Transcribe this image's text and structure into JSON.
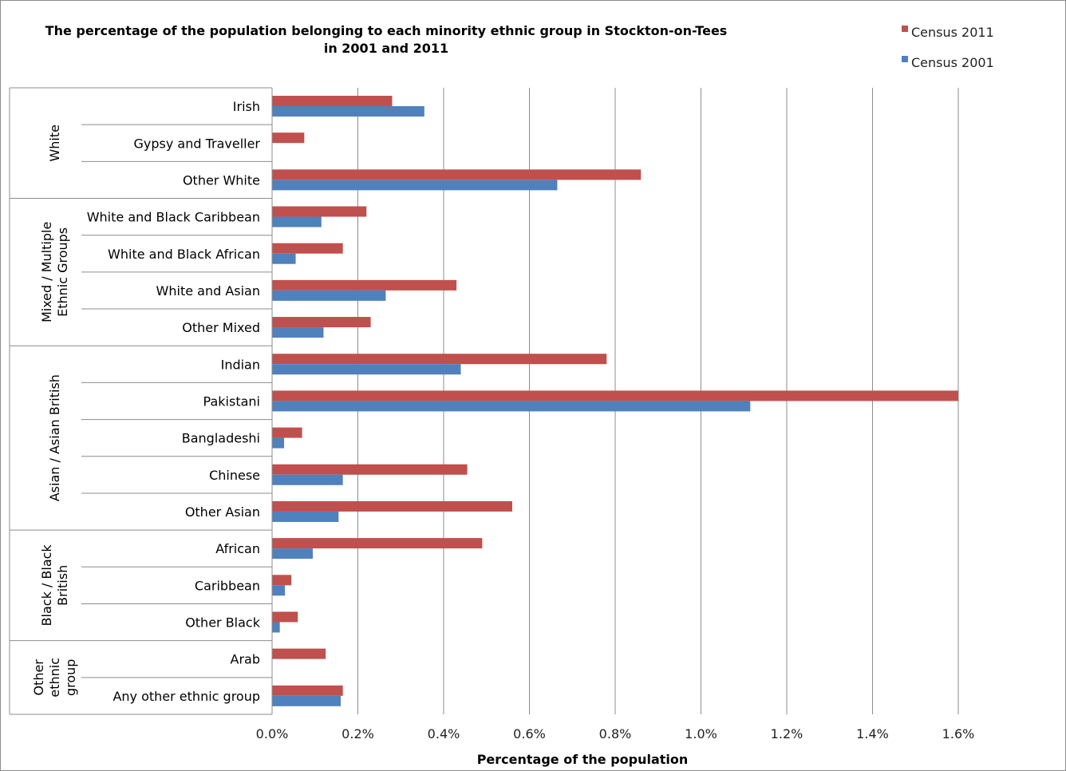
{
  "chart_data": {
    "type": "bar",
    "orientation": "horizontal",
    "title": "The percentage of the population belonging to each minority ethnic group in Stockton-on-Tees in 2001 and 2011",
    "title_lines": [
      "The percentage of the population belonging to each minority ethnic group in Stockton-on-Tees",
      "in 2001 and 2011"
    ],
    "xlabel": "Percentage of the population",
    "xlim": [
      0,
      1.6
    ],
    "x_unit": "%",
    "x_ticks": [
      "0.0%",
      "0.2%",
      "0.4%",
      "0.6%",
      "0.8%",
      "1.0%",
      "1.2%",
      "1.4%",
      "1.6%"
    ],
    "grid": "vertical",
    "legend_position": "top-right",
    "groups": [
      {
        "name": "White",
        "name_lines": [
          "White"
        ],
        "categories": [
          "Irish",
          "Gypsy and Traveller",
          "Other White"
        ]
      },
      {
        "name": "Mixed / Multiple Ethnic Groups",
        "name_lines": [
          "Mixed / Multiple",
          "Ethnic Groups"
        ],
        "categories": [
          "White and Black Caribbean",
          "White and Black African",
          "White and Asian",
          "Other Mixed"
        ]
      },
      {
        "name": "Asian / Asian British",
        "name_lines": [
          "Asian / Asian British"
        ],
        "categories": [
          "Indian",
          "Pakistani",
          "Bangladeshi",
          "Chinese",
          "Other Asian"
        ]
      },
      {
        "name": "Black / Black British",
        "name_lines": [
          "Black / Black",
          "British"
        ],
        "categories": [
          "African",
          "Caribbean",
          "Other Black"
        ]
      },
      {
        "name": "Other ethnic group",
        "name_lines": [
          "Other",
          "ethnic",
          "group"
        ],
        "categories": [
          "Arab",
          "Any other ethnic group"
        ]
      }
    ],
    "categories": [
      "Irish",
      "Gypsy and Traveller",
      "Other White",
      "White and Black Caribbean",
      "White and Black African",
      "White and Asian",
      "Other Mixed",
      "Indian",
      "Pakistani",
      "Bangladeshi",
      "Chinese",
      "Other Asian",
      "African",
      "Caribbean",
      "Other Black",
      "Arab",
      "Any other ethnic group"
    ],
    "series": [
      {
        "name": "Census 2011",
        "color": "#c0504d",
        "values": [
          0.28,
          0.075,
          0.86,
          0.22,
          0.165,
          0.43,
          0.23,
          0.78,
          1.6,
          0.07,
          0.455,
          0.56,
          0.49,
          0.045,
          0.06,
          0.125,
          0.165
        ]
      },
      {
        "name": "Census 2001",
        "color": "#4f81bd",
        "values": [
          0.355,
          0.0,
          0.665,
          0.115,
          0.055,
          0.265,
          0.12,
          0.44,
          1.115,
          0.028,
          0.165,
          0.155,
          0.095,
          0.03,
          0.018,
          0.0,
          0.16
        ]
      }
    ]
  }
}
